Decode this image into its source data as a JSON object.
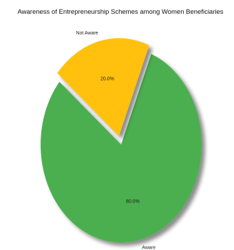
{
  "chart_data": {
    "type": "pie",
    "title": "Awareness of Entrepreneurship Schemes among Women Beneficiaries",
    "categories": [
      "Aware",
      "Not Aware"
    ],
    "values": [
      80.0,
      20.0
    ],
    "value_labels": [
      "80.0%",
      "20.0%"
    ],
    "colors": [
      "#4caf50",
      "#ffc107"
    ],
    "explode": [
      0,
      0.1
    ],
    "shadow": true,
    "start_angle_deg": 140,
    "direction": "counterclockwise"
  }
}
